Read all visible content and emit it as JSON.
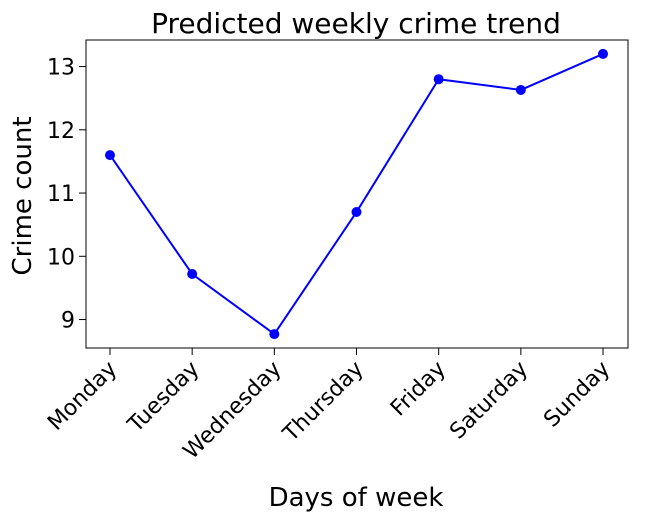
{
  "chart_data": {
    "type": "line",
    "title": "Predicted weekly crime trend",
    "xlabel": "Days of week",
    "ylabel": "Crime count",
    "categories": [
      "Monday",
      "Tuesday",
      "Wednesday",
      "Thursday",
      "Friday",
      "Saturday",
      "Sunday"
    ],
    "series": [
      {
        "values": [
          11.6,
          9.72,
          8.77,
          10.7,
          12.8,
          12.63,
          13.2
        ],
        "color": "#0000ff",
        "marker": "circle"
      }
    ],
    "yticks": [
      9,
      10,
      11,
      12,
      13
    ],
    "ylim": [
      8.55,
      13.42
    ],
    "grid": false,
    "legend": "none"
  }
}
